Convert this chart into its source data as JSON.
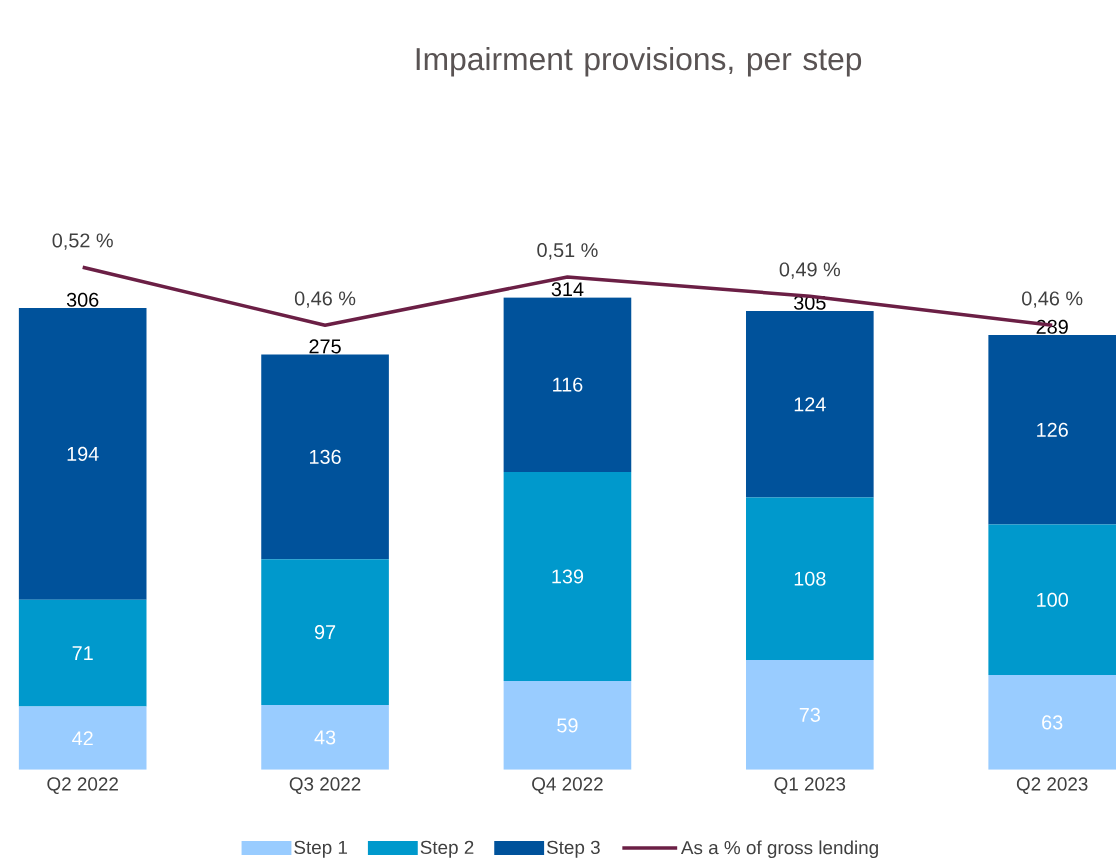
{
  "chart_data": {
    "type": "bar",
    "title": "Impairment provisions, per step",
    "stacked": true,
    "data_labels": true,
    "legend": "bottom",
    "tick_labels": "x",
    "categories": [
      "Q2 2022",
      "Q3 2022",
      "Q4 2022",
      "Q1 2023",
      "Q2 2023"
    ],
    "series": [
      {
        "name": "Step 1",
        "color": "#99ccff",
        "values": [
          42,
          43,
          59,
          73,
          63
        ]
      },
      {
        "name": "Step 2",
        "color": "#0099cc",
        "values": [
          71,
          97,
          139,
          108,
          100
        ]
      },
      {
        "name": "Step 3",
        "color": "#00529b",
        "values": [
          194,
          136,
          116,
          124,
          126
        ]
      },
      {
        "name": "As a % of gross lending",
        "type": "line",
        "axis": "y2",
        "color": "#6b1f45",
        "values": [
          0.52,
          0.46,
          0.51,
          0.49,
          0.46
        ],
        "value_labels": [
          "0,52 %",
          "0,46 %",
          "0,51 %",
          "0,49 %",
          "0,46 %"
        ]
      }
    ],
    "totals": [
      "306",
      "275",
      "314",
      "305",
      "289"
    ]
  }
}
